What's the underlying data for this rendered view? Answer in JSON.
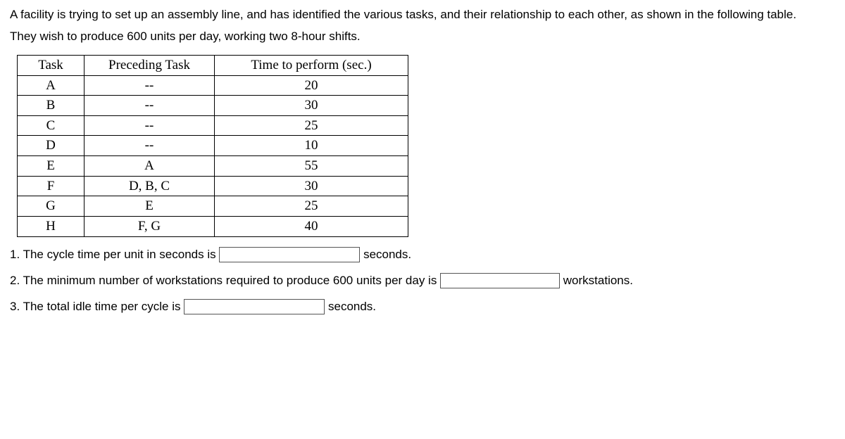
{
  "intro1": "A facility is trying to set up an assembly line, and has identified the various tasks, and their relationship to each other, as shown in the following table.",
  "intro2": "They wish to produce 600 units per day, working two 8-hour shifts.",
  "table": {
    "headers": [
      "Task",
      "Preceding Task",
      "Time to perform (sec.)"
    ],
    "rows": [
      [
        "A",
        "--",
        "20"
      ],
      [
        "B",
        "--",
        "30"
      ],
      [
        "C",
        "--",
        "25"
      ],
      [
        "D",
        "--",
        "10"
      ],
      [
        "E",
        "A",
        "55"
      ],
      [
        "F",
        "D, B, C",
        "30"
      ],
      [
        "G",
        "E",
        "25"
      ],
      [
        "H",
        "F, G",
        "40"
      ]
    ]
  },
  "q1_pre": "1. The cycle time per unit in seconds is ",
  "q1_post": "seconds.",
  "q2_pre": "2. The minimum number of workstations required to produce 600 units per day is ",
  "q2_post": "workstations.",
  "q3_pre": "3. The total idle time per cycle is ",
  "q3_post": "seconds."
}
